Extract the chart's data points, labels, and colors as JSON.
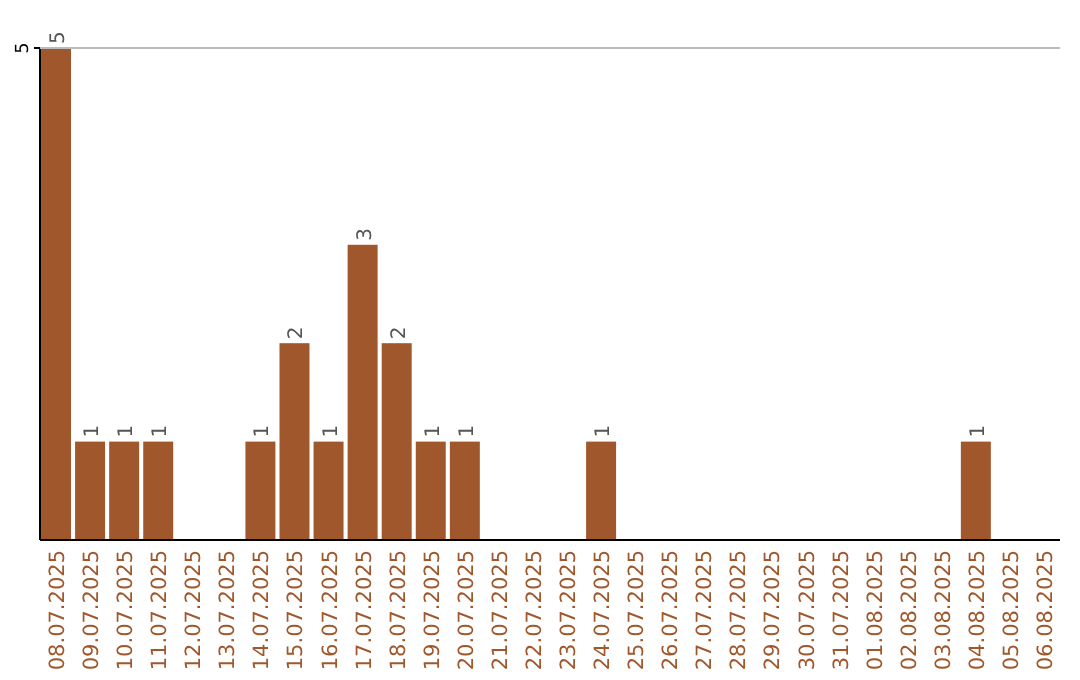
{
  "chart_data": {
    "type": "bar",
    "categories": [
      "08.07.2025",
      "09.07.2025",
      "10.07.2025",
      "11.07.2025",
      "12.07.2025",
      "13.07.2025",
      "14.07.2025",
      "15.07.2025",
      "16.07.2025",
      "17.07.2025",
      "18.07.2025",
      "19.07.2025",
      "20.07.2025",
      "21.07.2025",
      "22.07.2025",
      "23.07.2025",
      "24.07.2025",
      "25.07.2025",
      "26.07.2025",
      "27.07.2025",
      "28.07.2025",
      "29.07.2025",
      "30.07.2025",
      "31.07.2025",
      "01.08.2025",
      "02.08.2025",
      "03.08.2025",
      "04.08.2025",
      "05.08.2025",
      "06.08.2025"
    ],
    "values": [
      5,
      1,
      1,
      1,
      0,
      0,
      1,
      2,
      1,
      3,
      2,
      1,
      1,
      0,
      0,
      0,
      1,
      0,
      0,
      0,
      0,
      0,
      0,
      0,
      0,
      0,
      0,
      1,
      0,
      0
    ],
    "value_labels": [
      "5",
      "1",
      "1",
      "1",
      null,
      null,
      "1",
      "2",
      "1",
      "3",
      "2",
      "1",
      "1",
      null,
      null,
      null,
      "1",
      null,
      null,
      null,
      null,
      null,
      null,
      null,
      null,
      null,
      null,
      "1",
      null,
      null
    ],
    "color": "#a0572b",
    "ylim": [
      0,
      5
    ],
    "yticks": [
      5
    ]
  }
}
